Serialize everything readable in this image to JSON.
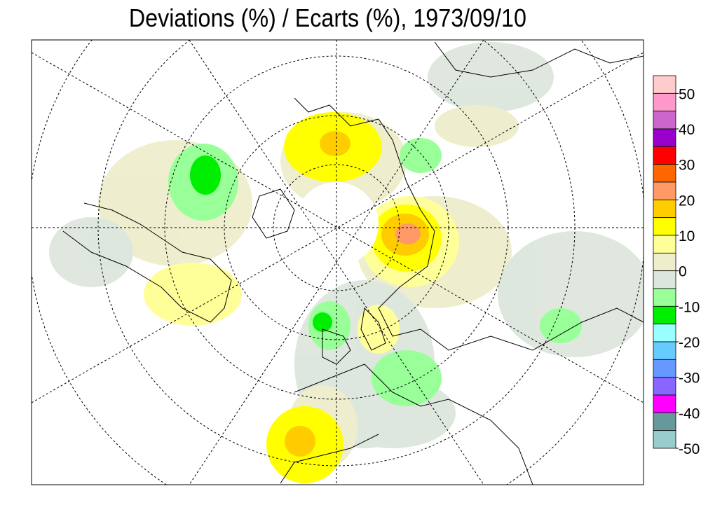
{
  "title": "Deviations (%) / Ecarts (%), 1973/09/10",
  "colorbar": {
    "colors": [
      "#ffcccc",
      "#ff99cc",
      "#cc66cc",
      "#9900cc",
      "#ff0000",
      "#ff6600",
      "#ff9966",
      "#ffcc00",
      "#ffff00",
      "#ffff99",
      "#eeeecc",
      "#dde6dd",
      "#99ff99",
      "#00ee00",
      "#99ffff",
      "#66ccff",
      "#6699ff",
      "#8866ff",
      "#ff00ff",
      "#669999",
      "#99cccc"
    ],
    "range": [
      55,
      -50
    ],
    "labels": [
      50,
      40,
      30,
      20,
      10,
      0,
      -10,
      -20,
      -30,
      -40,
      -50
    ]
  }
}
